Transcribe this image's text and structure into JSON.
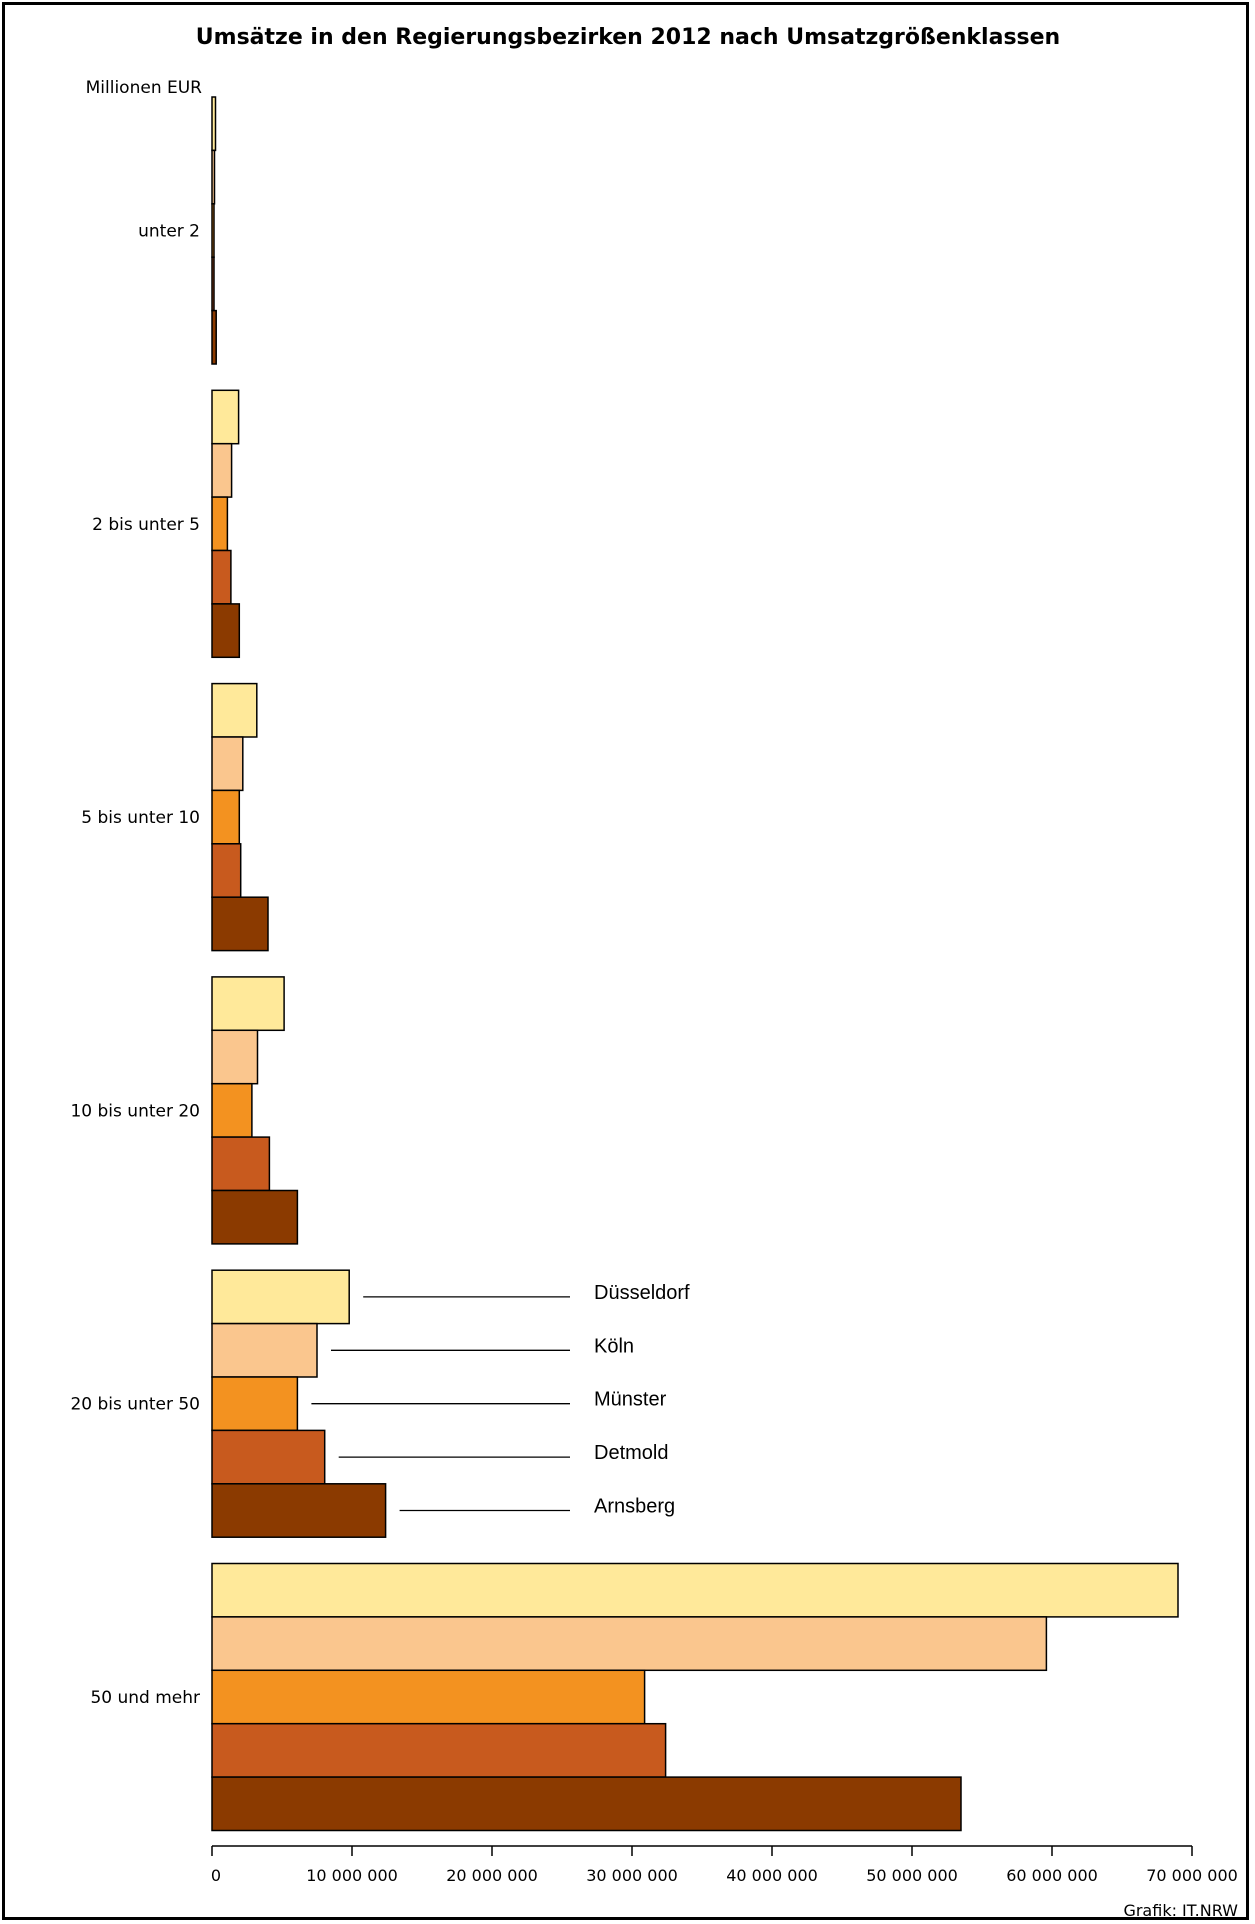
{
  "chart_data": {
    "type": "bar",
    "orientation": "horizontal",
    "title": "Umsätze in den Regierungsbezirken 2012 nach Umsatzgrößenklassen",
    "unit_label": "Millionen EUR",
    "categories": [
      "unter 2",
      "2 bis unter 5",
      "5 bis unter 10",
      "10 bis unter 20",
      "20 bis unter 50",
      "50 und mehr"
    ],
    "series": [
      {
        "name": "Düsseldorf",
        "color": "#FFE99A",
        "values": [
          250000,
          1900000,
          3200000,
          5150000,
          9800000,
          69000000
        ]
      },
      {
        "name": "Köln",
        "color": "#FAC68E",
        "values": [
          180000,
          1400000,
          2200000,
          3250000,
          7500000,
          59600000
        ]
      },
      {
        "name": "Münster",
        "color": "#F39220",
        "values": [
          120000,
          1100000,
          1950000,
          2850000,
          6100000,
          30900000
        ]
      },
      {
        "name": "Detmold",
        "color": "#C85A1E",
        "values": [
          80000,
          1350000,
          2050000,
          4100000,
          8050000,
          32400000
        ]
      },
      {
        "name": "Arnsberg",
        "color": "#8B3A00",
        "values": [
          300000,
          1950000,
          4000000,
          6100000,
          12400000,
          53500000
        ]
      }
    ],
    "x_ticks": [
      0,
      10000000,
      20000000,
      30000000,
      40000000,
      50000000,
      60000000,
      70000000
    ],
    "x_tick_labels": [
      "0",
      "10 000 000",
      "20 000 000",
      "30 000 000",
      "40 000 000",
      "50 000 000",
      "60 000 000",
      "70 000 000"
    ],
    "xlim": [
      0,
      70000000
    ],
    "legend_placement": "inline labels beside the 20 bis unter 50 group",
    "grid": false
  },
  "source": "Grafik: IT.NRW"
}
